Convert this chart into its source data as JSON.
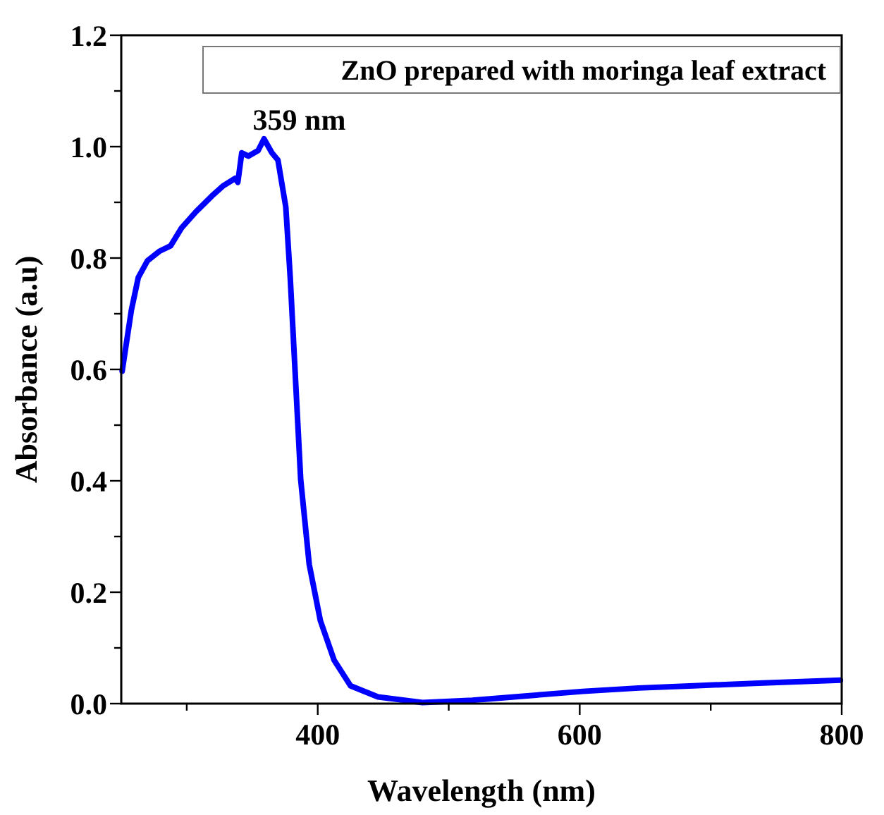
{
  "chart_data": {
    "type": "line",
    "xlabel": "Wavelength (nm)",
    "ylabel": "Absorbance (a.u)",
    "xlim": [
      250,
      800
    ],
    "xticks": [
      {
        "value": 300,
        "label": null
      },
      400,
      {
        "value": 500,
        "label": null
      },
      600,
      {
        "value": 700,
        "label": null
      },
      800
    ],
    "ylim": [
      0,
      1.2
    ],
    "yticks": [
      {
        "value": 0,
        "label": "0.0"
      },
      {
        "value": 0.1,
        "label": null
      },
      {
        "value": 0.2,
        "label": "0.2"
      },
      {
        "value": 0.3,
        "label": null
      },
      {
        "value": 0.4,
        "label": "0.4"
      },
      {
        "value": 0.5,
        "label": null
      },
      {
        "value": 0.6,
        "label": "0.6"
      },
      {
        "value": 0.7,
        "label": null
      },
      {
        "value": 0.8,
        "label": "0.8"
      },
      {
        "value": 0.9,
        "label": null
      },
      {
        "value": 1.0,
        "label": "1.0"
      },
      {
        "value": 1.1,
        "label": null
      },
      {
        "value": 1.2,
        "label": "1.2"
      }
    ],
    "legend": "top right",
    "grid": false,
    "annotations": [
      {
        "text": "359 nm",
        "x": 359,
        "y": 1.01
      }
    ],
    "series": [
      {
        "name": "ZnO prepared with moringa leaf extract",
        "color": "#0000ff",
        "x": [
          250.7,
          257.7,
          263,
          270,
          279,
          287.7,
          296,
          307,
          319,
          328,
          337,
          339,
          342,
          347,
          354.5,
          359,
          365,
          369.6,
          375.6,
          379,
          382.7,
          387,
          393.5,
          402,
          412.5,
          425,
          446,
          480,
          518,
          560,
          602.5,
          645,
          687,
          740,
          799
        ],
        "values": [
          0.597,
          0.706,
          0.765,
          0.795,
          0.812,
          0.822,
          0.854,
          0.883,
          0.911,
          0.93,
          0.943,
          0.936,
          0.989,
          0.983,
          0.993,
          1.014,
          0.989,
          0.976,
          0.892,
          0.765,
          0.597,
          0.402,
          0.25,
          0.149,
          0.078,
          0.032,
          0.012,
          0.002,
          0.006,
          0.014,
          0.022,
          0.028,
          0.032,
          0.037,
          0.042
        ]
      }
    ]
  }
}
